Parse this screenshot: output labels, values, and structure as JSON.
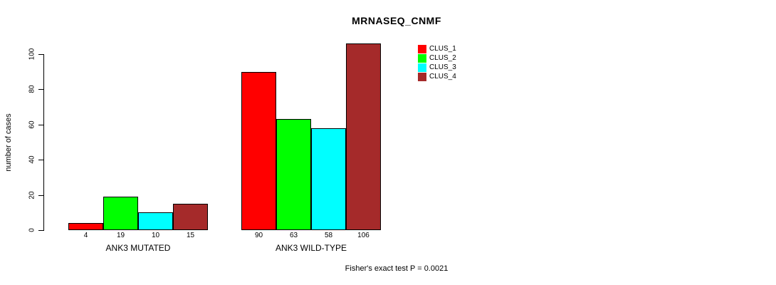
{
  "chart_data": {
    "type": "bar",
    "title": "MRNASEQ_CNMF",
    "ylabel": "number of cases",
    "xlabel": "",
    "categories": [
      "ANK3 MUTATED",
      "ANK3 WILD-TYPE"
    ],
    "series": [
      {
        "name": "CLUS_1",
        "color": "#FF0000",
        "values": [
          4,
          90
        ]
      },
      {
        "name": "CLUS_2",
        "color": "#00FF00",
        "values": [
          19,
          63
        ]
      },
      {
        "name": "CLUS_3",
        "color": "#00FFFF",
        "values": [
          10,
          58
        ]
      },
      {
        "name": "CLUS_4",
        "color": "#A52A2A",
        "values": [
          15,
          106
        ]
      }
    ],
    "yticks": [
      0,
      20,
      40,
      60,
      80,
      100
    ],
    "ylim": [
      0,
      100
    ],
    "bar_value_labels": [
      [
        "4",
        "19",
        "10",
        "15"
      ],
      [
        "90",
        "63",
        "58",
        "106"
      ]
    ],
    "legend_position": "top-right",
    "grid": false,
    "annotation": "Fisher's exact test P = 0.0021"
  }
}
